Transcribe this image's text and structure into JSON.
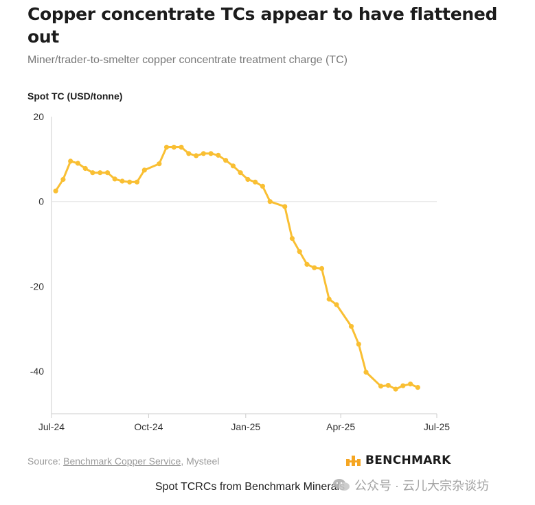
{
  "header": {
    "title": "Copper concentrate TCs appear to have flattened out",
    "subtitle": "Miner/trader-to-smelter copper concentrate treatment charge (TC)"
  },
  "chart_data": {
    "type": "line",
    "ylabel": "Spot TC (USD/tonne)",
    "xlabel": "",
    "x_ticks": [
      "Jul-24",
      "Oct-24",
      "Jan-25",
      "Apr-25",
      "Jul-25"
    ],
    "y_ticks": [
      20,
      0,
      -20,
      -40
    ],
    "xlim": [
      "2024-07-01",
      "2025-07-01"
    ],
    "ylim": [
      -50,
      20
    ],
    "grid": "horizontal zero line",
    "series": [
      {
        "color": "#f9bf33",
        "points": [
          [
            "2024-07-05",
            2.5
          ],
          [
            "2024-07-12",
            5.2
          ],
          [
            "2024-07-19",
            9.5
          ],
          [
            "2024-07-26",
            9.0
          ],
          [
            "2024-08-02",
            7.8
          ],
          [
            "2024-08-09",
            6.8
          ],
          [
            "2024-08-16",
            6.8
          ],
          [
            "2024-08-23",
            6.8
          ],
          [
            "2024-08-30",
            5.3
          ],
          [
            "2024-09-06",
            4.8
          ],
          [
            "2024-09-13",
            4.6
          ],
          [
            "2024-09-20",
            4.6
          ],
          [
            "2024-09-27",
            7.4
          ],
          [
            "2024-10-11",
            8.9
          ],
          [
            "2024-10-18",
            12.8
          ],
          [
            "2024-10-25",
            12.8
          ],
          [
            "2024-11-01",
            12.8
          ],
          [
            "2024-11-08",
            11.3
          ],
          [
            "2024-11-15",
            10.8
          ],
          [
            "2024-11-22",
            11.3
          ],
          [
            "2024-11-29",
            11.3
          ],
          [
            "2024-12-06",
            10.9
          ],
          [
            "2024-12-13",
            9.7
          ],
          [
            "2024-12-20",
            8.4
          ],
          [
            "2024-12-27",
            6.8
          ],
          [
            "2025-01-03",
            5.2
          ],
          [
            "2025-01-10",
            4.6
          ],
          [
            "2025-01-17",
            3.6
          ],
          [
            "2025-01-24",
            0.0
          ],
          [
            "2025-02-07",
            -1.2
          ],
          [
            "2025-02-14",
            -8.7
          ],
          [
            "2025-02-21",
            -11.8
          ],
          [
            "2025-02-28",
            -14.8
          ],
          [
            "2025-03-07",
            -15.6
          ],
          [
            "2025-03-14",
            -15.8
          ],
          [
            "2025-03-21",
            -23.0
          ],
          [
            "2025-03-28",
            -24.3
          ],
          [
            "2025-04-11",
            -29.4
          ],
          [
            "2025-04-18",
            -33.6
          ],
          [
            "2025-04-25",
            -40.2
          ],
          [
            "2025-05-09",
            -43.5
          ],
          [
            "2025-05-16",
            -43.3
          ],
          [
            "2025-05-23",
            -44.2
          ],
          [
            "2025-05-30",
            -43.4
          ],
          [
            "2025-06-06",
            -43.0
          ],
          [
            "2025-06-13",
            -43.8
          ]
        ]
      }
    ]
  },
  "footer": {
    "source_prefix": "Source: ",
    "source_link": "Benchmark Copper Service",
    "source_suffix": ", Mysteel",
    "logo_text": "BENCHMARK",
    "caption": "Spot TCRCs from Benchmark Minerals",
    "watermark": "公众号 · 云儿大宗杂谈坊"
  },
  "colors": {
    "line": "#f9bf33",
    "axis": "#cccccc",
    "logo_orange": "#f5a623"
  }
}
